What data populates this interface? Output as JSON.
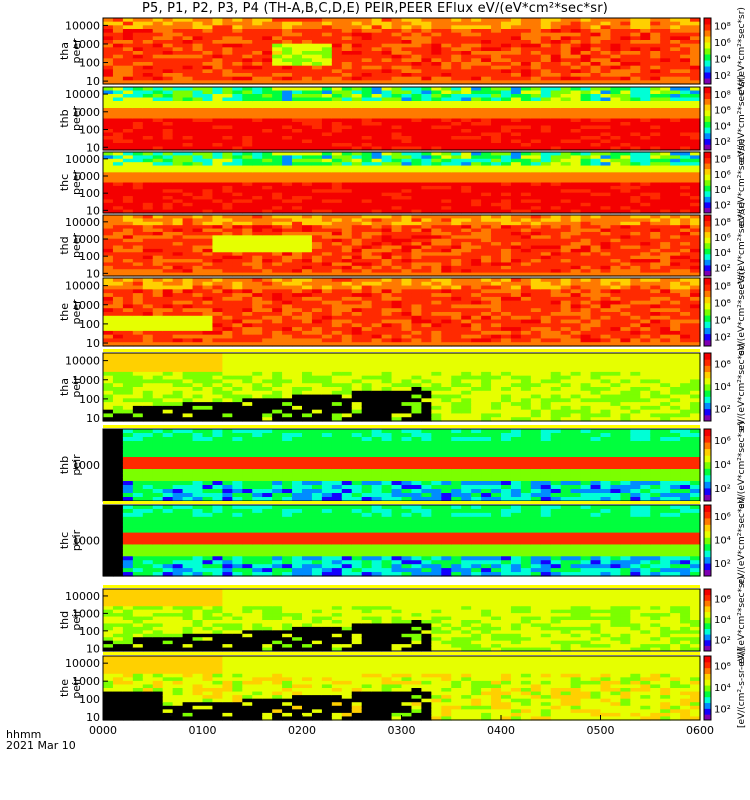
{
  "title": "P5, P1, P2, P3, P4 (TH-A,B,C,D,E) PEIR,PEER EFlux eV/(eV*cm²*sec*sr)",
  "colors": {
    "cb": [
      "#7f00b3",
      "#1400ff",
      "#008cff",
      "#00ffd6",
      "#00ff3d",
      "#7bff00",
      "#e6ff00",
      "#ffd000",
      "#ff7a00",
      "#ff2a00",
      "#f40000"
    ]
  },
  "chart_data": {
    "type": "heatmap",
    "x_axis": {
      "label": "hhmm\n2021 Mar 10",
      "row_label": "hhmm",
      "date_label": "2021 Mar 10",
      "ticks": [
        "0000",
        "0100",
        "0200",
        "0300",
        "0400",
        "0500",
        "0600"
      ],
      "range_hours": [
        0,
        6
      ]
    },
    "panels": [
      {
        "name": "tha peer",
        "label_line1": "tha",
        "label_line2": "peer",
        "yscale": "log",
        "yticks": [
          "10000",
          "1000",
          "100",
          "10"
        ],
        "ylim_eV": [
          7,
          25000
        ],
        "cbar_ticks": [
          "10⁸",
          "10⁶",
          "10⁴",
          "10²"
        ],
        "cbar_label": "eV/(eV*cm²*sec*sr)",
        "base": 0.85
      },
      {
        "name": "thb peer",
        "label_line1": "thb",
        "label_line2": "peer",
        "yscale": "log",
        "yticks": [
          "10000",
          "1000",
          "100",
          "10"
        ],
        "ylim_eV": [
          7,
          25000
        ],
        "cbar_ticks": [
          "10⁸",
          "10⁶",
          "10⁴",
          "10²"
        ],
        "cbar_label": "eV/(eV*cm²*sec*sr)",
        "base": 0.95
      },
      {
        "name": "thc peer",
        "label_line1": "thc",
        "label_line2": "peer",
        "yscale": "log",
        "yticks": [
          "10000",
          "1000",
          "100",
          "10"
        ],
        "ylim_eV": [
          7,
          25000
        ],
        "cbar_ticks": [
          "10⁸",
          "10⁶",
          "10⁴",
          "10²"
        ],
        "cbar_label": "eV/(eV*cm²*sec*sr)",
        "base": 0.95
      },
      {
        "name": "thd peer",
        "label_line1": "thd",
        "label_line2": "peer",
        "yscale": "log",
        "yticks": [
          "10000",
          "1000",
          "100",
          "10"
        ],
        "ylim_eV": [
          7,
          25000
        ],
        "cbar_ticks": [
          "10⁸",
          "10⁶",
          "10⁴",
          "10²"
        ],
        "cbar_label": "eV/(eV*cm²*sec*sr)",
        "base": 0.85
      },
      {
        "name": "the peer",
        "label_line1": "the",
        "label_line2": "peer",
        "yscale": "log",
        "yticks": [
          "10000",
          "1000",
          "100",
          "10"
        ],
        "ylim_eV": [
          7,
          25000
        ],
        "cbar_ticks": [
          "10⁸",
          "10⁶",
          "10⁴",
          "10²"
        ],
        "cbar_label": "eV/(eV*cm²*sec*sr)",
        "base": 0.85
      },
      {
        "name": "tha peir",
        "label_line1": "tha",
        "label_line2": "peir",
        "yscale": "log",
        "yticks": [
          "10000",
          "1000",
          "100",
          "10"
        ],
        "ylim_eV": [
          7,
          25000
        ],
        "cbar_ticks": [
          "10⁶",
          "10⁴",
          "10²"
        ],
        "cbar_label": "eV/(eV*cm²*sec*sr)",
        "base": 0.55
      },
      {
        "name": "thb peir",
        "label_line1": "thb",
        "label_line2": "peir",
        "yscale": "log",
        "yticks": [
          "1000"
        ],
        "ylim_eV": [
          200,
          5000
        ],
        "cbar_ticks": [
          "10⁶",
          "10⁴",
          "10²"
        ],
        "cbar_label": "eV/(eV*cm²*sec*sr)",
        "base": 0.5
      },
      {
        "name": "thc peir",
        "label_line1": "thc",
        "label_line2": "peir",
        "yscale": "log",
        "yticks": [
          "1000"
        ],
        "ylim_eV": [
          200,
          5000
        ],
        "cbar_ticks": [
          "10⁶",
          "10⁴",
          "10²"
        ],
        "cbar_label": "eV/(eV*cm²*sec*sr)",
        "base": 0.5
      },
      {
        "name": "thd peir",
        "label_line1": "thd",
        "label_line2": "peir",
        "yscale": "log",
        "yticks": [
          "10000",
          "1000",
          "100",
          "10"
        ],
        "ylim_eV": [
          7,
          25000
        ],
        "cbar_ticks": [
          "10⁶",
          "10⁴",
          "10²"
        ],
        "cbar_label": "eV/(eV*cm²*sec*sr)",
        "base": 0.55
      },
      {
        "name": "the peir",
        "label_line1": "the",
        "label_line2": "peir",
        "yscale": "log",
        "yticks": [
          "10000",
          "1000",
          "100",
          "10"
        ],
        "ylim_eV": [
          7,
          25000
        ],
        "cbar_ticks": [
          "10⁶",
          "10⁴",
          "10²"
        ],
        "cbar_label": "[eV/(cm²-s-sr-eV)]",
        "base": 0.6
      }
    ]
  }
}
